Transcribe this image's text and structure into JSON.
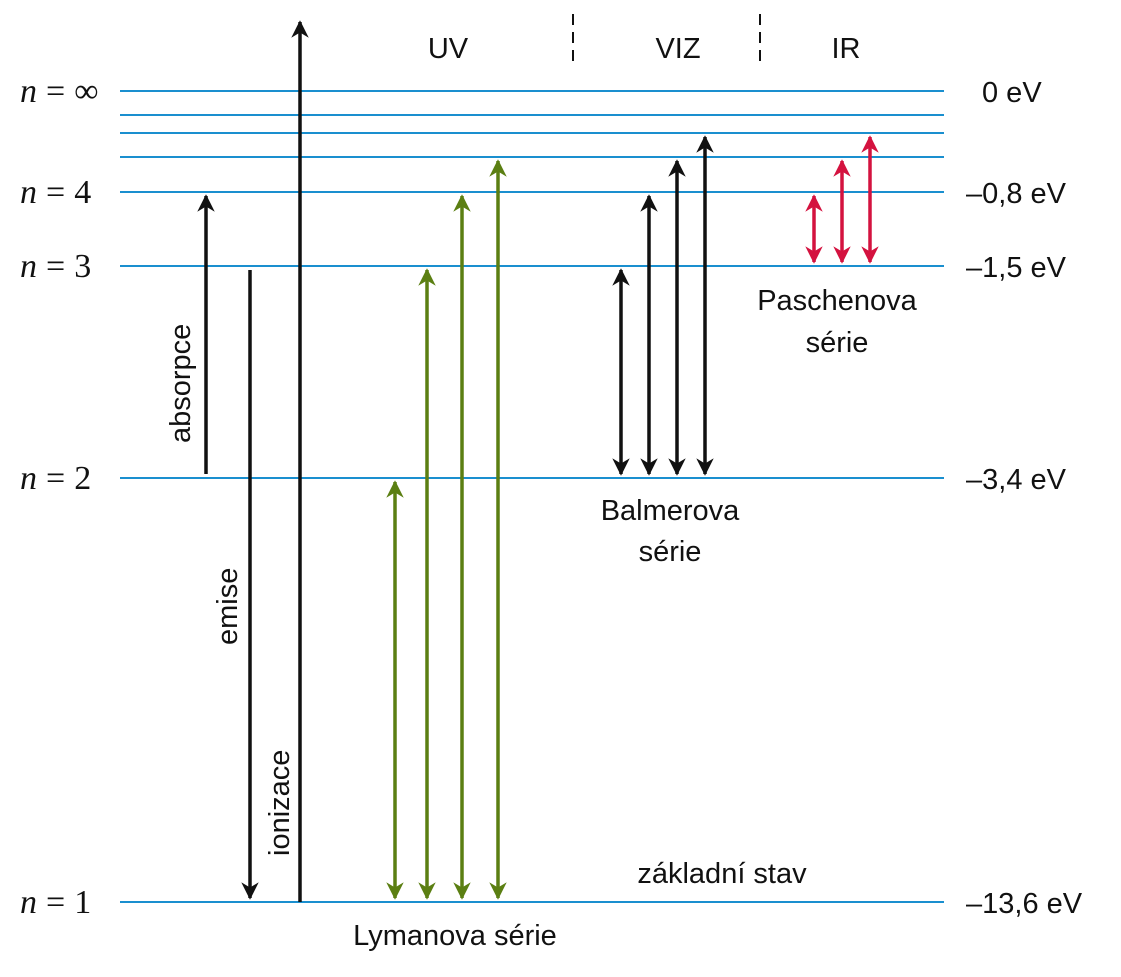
{
  "colors": {
    "level_line": "#1a8fcf",
    "black_arrow": "#111111",
    "lyman_arrow": "#5b7f12",
    "paschen_arrow": "#d4123f"
  },
  "regions": {
    "uv": "UV",
    "viz": "VIZ",
    "ir": "IR"
  },
  "levels": [
    {
      "n_symbol": "n",
      "n_value": "∞",
      "energy": "0 eV"
    },
    {
      "n_symbol": "n",
      "n_value": "4",
      "energy": "–0,8 eV"
    },
    {
      "n_symbol": "n",
      "n_value": "3",
      "energy": "–1,5 eV"
    },
    {
      "n_symbol": "n",
      "n_value": "2",
      "energy": "–3,4 eV"
    },
    {
      "n_symbol": "n",
      "n_value": "1",
      "energy": "–13,6 eV"
    }
  ],
  "level_equals": "=",
  "labels": {
    "absorpce": "absorpce",
    "emise": "emise",
    "ionizace": "ionizace",
    "zakladni_stav": "základní stav",
    "lyman": "Lymanova série",
    "balmer_line1": "Balmerova",
    "balmer_line2": "série",
    "paschen_line1": "Paschenova",
    "paschen_line2": "série"
  }
}
